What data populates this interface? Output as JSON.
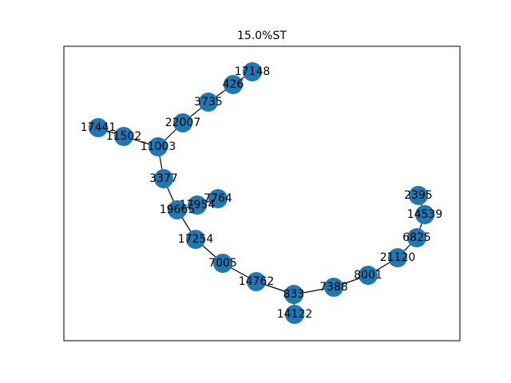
{
  "figure": {
    "title": "15.0%ST",
    "colors": {
      "node": "#1f77b4",
      "edge": "#000000",
      "background": "#ffffff"
    },
    "nodes": [
      "17148",
      "426",
      "3735",
      "22007",
      "11003",
      "11502",
      "17441",
      "3377",
      "19665",
      "17954",
      "7764",
      "17254",
      "7005",
      "14762",
      "833",
      "14122",
      "7388",
      "8001",
      "21120",
      "6825",
      "14539",
      "2395"
    ],
    "edges": [
      [
        "17148",
        "426"
      ],
      [
        "426",
        "3735"
      ],
      [
        "3735",
        "22007"
      ],
      [
        "22007",
        "11003"
      ],
      [
        "11003",
        "11502"
      ],
      [
        "11502",
        "17441"
      ],
      [
        "11003",
        "3377"
      ],
      [
        "3377",
        "19665"
      ],
      [
        "19665",
        "17954"
      ],
      [
        "17954",
        "7764"
      ],
      [
        "19665",
        "17254"
      ],
      [
        "17254",
        "7005"
      ],
      [
        "7005",
        "14762"
      ],
      [
        "14762",
        "833"
      ],
      [
        "833",
        "14122"
      ],
      [
        "833",
        "7388"
      ],
      [
        "7388",
        "8001"
      ],
      [
        "8001",
        "21120"
      ],
      [
        "21120",
        "6825"
      ],
      [
        "6825",
        "14539"
      ],
      [
        "14539",
        "2395"
      ]
    ]
  }
}
